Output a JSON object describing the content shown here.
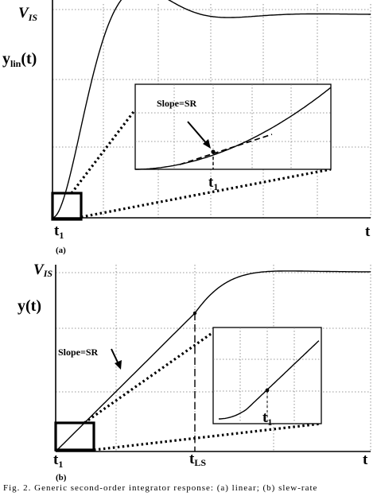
{
  "panel_a": {
    "level_label_main": "V",
    "level_label_sub": "IS",
    "y_label_main": "y",
    "y_label_sub": "lin",
    "y_label_arg": "(t)",
    "t1_main": "t",
    "t1_sub": "1",
    "t_axis": "t",
    "panel_letter": "(a)",
    "inset_slope_label": "Slope=SR",
    "inset_t1_main": "t",
    "inset_t1_sub": "1"
  },
  "panel_b": {
    "level_label_main": "V",
    "level_label_sub": "IS",
    "y_label": "y(t)",
    "slope_label": "Slope=SR",
    "t1_main": "t",
    "t1_sub": "1",
    "tls_main": "t",
    "tls_sub": "LS",
    "t_axis": "t",
    "panel_letter": "(b)",
    "inset_t1_main": "t",
    "inset_t1_sub": "1"
  },
  "caption": "Fig. 2. Generic second-order integrator response: (a) linear; (b) slew-rate"
}
